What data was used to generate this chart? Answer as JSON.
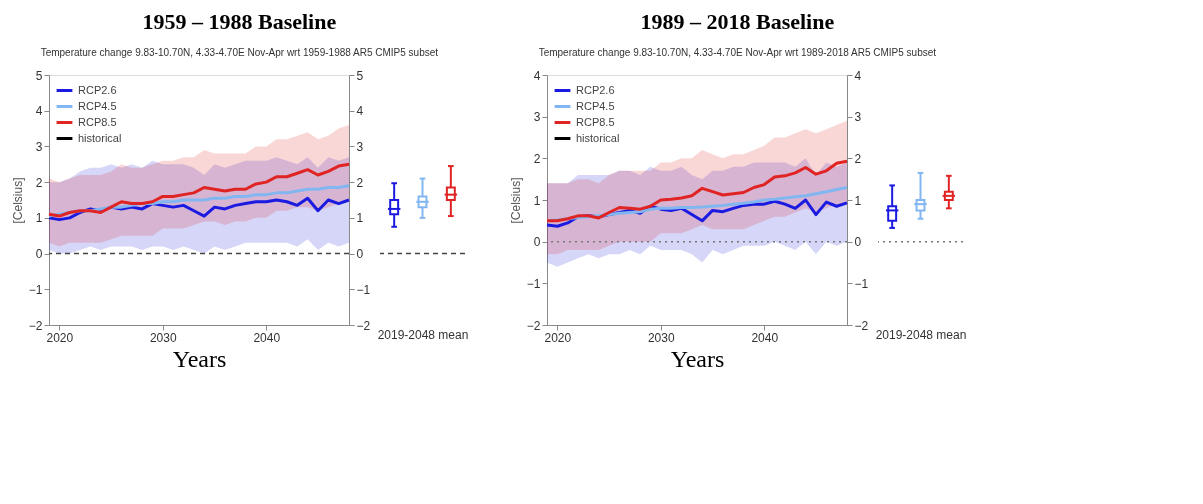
{
  "chart_data": [
    {
      "type": "line",
      "title": "1959 – 1988 Baseline",
      "subtitle": "Temperature change 9.83-10.70N, 4.33-4.70E Nov-Apr wrt 1959-1988 AR5 CMIP5 subset",
      "xlabel": "Years",
      "ylabel": "[Celsius]",
      "x": [
        2019,
        2020,
        2021,
        2022,
        2023,
        2024,
        2025,
        2026,
        2027,
        2028,
        2029,
        2030,
        2031,
        2032,
        2033,
        2034,
        2035,
        2036,
        2037,
        2038,
        2039,
        2040,
        2041,
        2042,
        2043,
        2044,
        2045,
        2046,
        2047,
        2048
      ],
      "xlim": [
        2019,
        2048
      ],
      "xticks": [
        2020,
        2030,
        2040
      ],
      "ylim": [
        -2,
        5
      ],
      "yticks": [
        -2,
        -1,
        0,
        1,
        2,
        3,
        4,
        5
      ],
      "y2lim": [
        -2,
        5
      ],
      "y2ticks": [
        -2,
        -1,
        0,
        1,
        2,
        3,
        4,
        5
      ],
      "grid": false,
      "legend": "top left",
      "line_style": "solid",
      "ref_lines": [
        {
          "axis": "y",
          "value": 0,
          "color": "#444444",
          "line_style": "dashed"
        }
      ],
      "series": [
        {
          "name": "RCP2.6",
          "color": "#1a1ae0",
          "values": [
            1.0,
            0.95,
            1.0,
            1.15,
            1.25,
            1.2,
            1.3,
            1.25,
            1.3,
            1.25,
            1.4,
            1.35,
            1.3,
            1.35,
            1.2,
            1.05,
            1.3,
            1.25,
            1.35,
            1.4,
            1.45,
            1.45,
            1.5,
            1.45,
            1.35,
            1.55,
            1.2,
            1.5,
            1.4,
            1.5
          ],
          "lower": [
            0.1,
            0.0,
            0.0,
            0.1,
            0.2,
            0.1,
            0.2,
            0.2,
            0.2,
            0.1,
            0.2,
            0.2,
            0.1,
            0.2,
            0.1,
            0.0,
            0.2,
            0.1,
            0.2,
            0.3,
            0.3,
            0.3,
            0.3,
            0.3,
            0.2,
            0.4,
            0.1,
            0.3,
            0.2,
            0.3
          ],
          "upper": [
            2.0,
            2.0,
            2.1,
            2.3,
            2.4,
            2.4,
            2.5,
            2.4,
            2.5,
            2.4,
            2.6,
            2.5,
            2.5,
            2.5,
            2.4,
            2.2,
            2.5,
            2.4,
            2.5,
            2.6,
            2.6,
            2.6,
            2.7,
            2.6,
            2.5,
            2.7,
            2.4,
            2.7,
            2.6,
            2.7
          ]
        },
        {
          "name": "RCP4.5",
          "color": "#82b6f0",
          "values": [
            1.05,
            1.1,
            1.15,
            1.2,
            1.2,
            1.25,
            1.3,
            1.3,
            1.35,
            1.4,
            1.4,
            1.45,
            1.45,
            1.5,
            1.5,
            1.5,
            1.55,
            1.55,
            1.6,
            1.6,
            1.65,
            1.65,
            1.7,
            1.7,
            1.75,
            1.8,
            1.8,
            1.85,
            1.85,
            1.9
          ]
        },
        {
          "name": "RCP8.5",
          "color": "#e02424",
          "values": [
            1.1,
            1.05,
            1.15,
            1.2,
            1.2,
            1.15,
            1.3,
            1.45,
            1.4,
            1.4,
            1.45,
            1.6,
            1.6,
            1.65,
            1.7,
            1.85,
            1.8,
            1.75,
            1.8,
            1.8,
            1.95,
            2.0,
            2.15,
            2.15,
            2.25,
            2.35,
            2.2,
            2.3,
            2.45,
            2.5
          ],
          "lower": [
            0.3,
            0.2,
            0.3,
            0.3,
            0.3,
            0.3,
            0.4,
            0.5,
            0.5,
            0.5,
            0.5,
            0.7,
            0.7,
            0.7,
            0.8,
            0.9,
            0.9,
            0.8,
            0.9,
            0.9,
            1.0,
            1.0,
            1.2,
            1.2,
            1.3,
            1.3,
            1.2,
            1.3,
            1.4,
            1.5
          ],
          "upper": [
            2.1,
            2.0,
            2.1,
            2.2,
            2.2,
            2.2,
            2.3,
            2.5,
            2.4,
            2.4,
            2.5,
            2.6,
            2.6,
            2.7,
            2.7,
            2.9,
            2.8,
            2.8,
            2.8,
            2.8,
            3.0,
            3.0,
            3.2,
            3.2,
            3.3,
            3.4,
            3.2,
            3.3,
            3.5,
            3.6
          ]
        },
        {
          "name": "historical",
          "color": "#000000",
          "values": [
            null,
            null,
            null,
            null,
            null,
            null,
            null,
            null,
            null,
            null,
            null,
            null,
            null,
            null,
            null,
            null,
            null,
            null,
            null,
            null,
            null,
            null,
            null,
            null,
            null,
            null,
            null,
            null,
            null,
            null
          ]
        }
      ]
    },
    {
      "type": "box",
      "xlabel": "2019-2048 mean",
      "categories": [
        null,
        null,
        null
      ],
      "ylim": [
        -2,
        5
      ],
      "tick_labels": false,
      "grid": false,
      "colors": [
        "#1a1ae0",
        "#82b6f0",
        "#e02424"
      ],
      "ref_lines": [
        {
          "axis": "y",
          "value": 0,
          "color": "#444444",
          "line_style": "dashed"
        }
      ],
      "boxes": [
        {
          "low": 0.75,
          "q1": 1.1,
          "median": 1.25,
          "q3": 1.5,
          "high": 1.97
        },
        {
          "low": 1.0,
          "q1": 1.3,
          "median": 1.45,
          "q3": 1.6,
          "high": 2.1
        },
        {
          "low": 1.05,
          "q1": 1.5,
          "median": 1.65,
          "q3": 1.85,
          "high": 2.45
        }
      ]
    },
    {
      "type": "line",
      "title": "1989 – 2018 Baseline",
      "subtitle": "Temperature change 9.83-10.70N, 4.33-4.70E Nov-Apr wrt 1989-2018 AR5 CMIP5 subset",
      "xlabel": "Years",
      "ylabel": "[Celsius]",
      "x": [
        2019,
        2020,
        2021,
        2022,
        2023,
        2024,
        2025,
        2026,
        2027,
        2028,
        2029,
        2030,
        2031,
        2032,
        2033,
        2034,
        2035,
        2036,
        2037,
        2038,
        2039,
        2040,
        2041,
        2042,
        2043,
        2044,
        2045,
        2046,
        2047,
        2048
      ],
      "xlim": [
        2019,
        2048
      ],
      "xticks": [
        2020,
        2030,
        2040
      ],
      "ylim": [
        -2,
        4
      ],
      "yticks": [
        -2,
        -1,
        0,
        1,
        2,
        3,
        4
      ],
      "y2lim": [
        -2,
        4
      ],
      "y2ticks": [
        -2,
        -1,
        0,
        1,
        2,
        3,
        4
      ],
      "grid": false,
      "legend": "top left",
      "line_style": "solid",
      "ref_lines": [
        {
          "axis": "y",
          "value": 0,
          "color": "#777777",
          "line_style": "dotted"
        }
      ],
      "series": [
        {
          "name": "RCP2.6",
          "color": "#1a1ae0",
          "values": [
            0.4,
            0.37,
            0.45,
            0.6,
            0.62,
            0.6,
            0.65,
            0.7,
            0.75,
            0.68,
            0.85,
            0.78,
            0.75,
            0.8,
            0.65,
            0.5,
            0.75,
            0.72,
            0.8,
            0.87,
            0.9,
            0.9,
            0.97,
            0.9,
            0.8,
            1.0,
            0.65,
            0.95,
            0.85,
            0.93
          ],
          "lower": [
            -0.5,
            -0.6,
            -0.5,
            -0.4,
            -0.3,
            -0.4,
            -0.3,
            -0.3,
            -0.2,
            -0.3,
            -0.1,
            -0.2,
            -0.2,
            -0.2,
            -0.3,
            -0.5,
            -0.2,
            -0.3,
            -0.2,
            -0.1,
            -0.1,
            -0.1,
            0.0,
            -0.1,
            -0.2,
            0.0,
            -0.3,
            0.0,
            -0.1,
            0.0
          ],
          "upper": [
            1.4,
            1.4,
            1.4,
            1.6,
            1.6,
            1.6,
            1.6,
            1.7,
            1.7,
            1.6,
            1.8,
            1.7,
            1.7,
            1.8,
            1.6,
            1.5,
            1.7,
            1.7,
            1.8,
            1.8,
            1.9,
            1.9,
            1.9,
            1.9,
            1.8,
            2.0,
            1.6,
            1.9,
            1.8,
            1.9
          ]
        },
        {
          "name": "RCP4.5",
          "color": "#82b6f0",
          "values": [
            0.5,
            0.52,
            0.55,
            0.58,
            0.6,
            0.62,
            0.65,
            0.68,
            0.7,
            0.72,
            0.78,
            0.8,
            0.8,
            0.82,
            0.82,
            0.83,
            0.85,
            0.87,
            0.9,
            0.92,
            0.95,
            1.0,
            1.02,
            1.05,
            1.08,
            1.1,
            1.15,
            1.2,
            1.25,
            1.3
          ]
        },
        {
          "name": "RCP8.5",
          "color": "#e02424",
          "values": [
            0.5,
            0.5,
            0.55,
            0.62,
            0.62,
            0.57,
            0.7,
            0.82,
            0.8,
            0.78,
            0.85,
            1.0,
            1.02,
            1.05,
            1.1,
            1.28,
            1.2,
            1.12,
            1.15,
            1.18,
            1.3,
            1.37,
            1.55,
            1.58,
            1.65,
            1.78,
            1.62,
            1.7,
            1.88,
            1.93
          ],
          "lower": [
            -0.3,
            -0.3,
            -0.2,
            -0.2,
            -0.2,
            -0.2,
            -0.1,
            0.0,
            0.0,
            0.0,
            0.0,
            0.2,
            0.2,
            0.2,
            0.3,
            0.4,
            0.3,
            0.3,
            0.3,
            0.3,
            0.4,
            0.5,
            0.6,
            0.6,
            0.7,
            0.8,
            0.7,
            0.8,
            0.9,
            0.9
          ],
          "upper": [
            1.4,
            1.4,
            1.4,
            1.5,
            1.5,
            1.4,
            1.6,
            1.7,
            1.7,
            1.7,
            1.7,
            1.9,
            1.9,
            2.0,
            2.0,
            2.2,
            2.1,
            2.0,
            2.1,
            2.1,
            2.2,
            2.3,
            2.5,
            2.5,
            2.6,
            2.7,
            2.6,
            2.7,
            2.8,
            2.9
          ]
        },
        {
          "name": "historical",
          "color": "#000000",
          "values": [
            null,
            null,
            null,
            null,
            null,
            null,
            null,
            null,
            null,
            null,
            null,
            null,
            null,
            null,
            null,
            null,
            null,
            null,
            null,
            null,
            null,
            null,
            null,
            null,
            null,
            null,
            null,
            null,
            null,
            null
          ]
        }
      ]
    },
    {
      "type": "box",
      "xlabel": "2019-2048 mean",
      "categories": [
        null,
        null,
        null
      ],
      "ylim": [
        -2,
        4
      ],
      "tick_labels": false,
      "grid": false,
      "colors": [
        "#1a1ae0",
        "#82b6f0",
        "#e02424"
      ],
      "ref_lines": [
        {
          "axis": "y",
          "value": 0,
          "color": "#777777",
          "line_style": "dotted"
        }
      ],
      "boxes": [
        {
          "low": 0.33,
          "q1": 0.5,
          "median": 0.75,
          "q3": 0.85,
          "high": 1.35
        },
        {
          "low": 0.55,
          "q1": 0.75,
          "median": 0.9,
          "q3": 1.0,
          "high": 1.65
        },
        {
          "low": 0.8,
          "q1": 1.0,
          "median": 1.1,
          "q3": 1.2,
          "high": 1.58
        }
      ]
    }
  ]
}
